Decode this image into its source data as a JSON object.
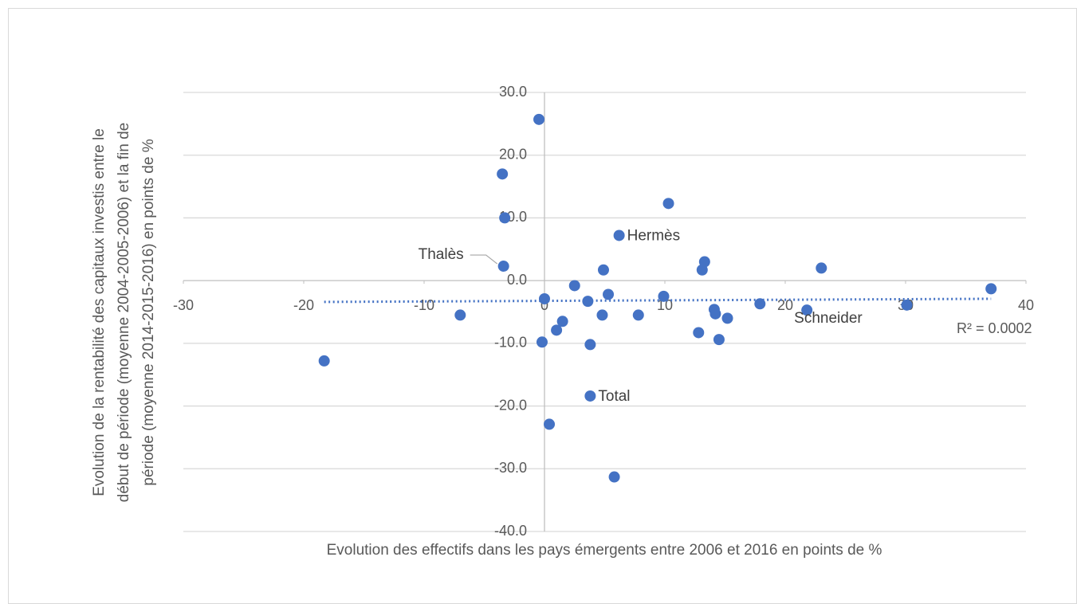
{
  "chart_data": {
    "type": "scatter",
    "xlabel": "Evolution des effectifs dans les pays émergents entre 2006 et 2016 en points de %",
    "ylabel": [
      "Evolution de la rentabilité des capitaux investis entre le",
      "début de période (moyenne 2004-2005-2006) et la fin de",
      "période (moyenne 2014-2015-2016) en points de %"
    ],
    "color": "#4472c4",
    "x": [
      -0.46,
      -3.5,
      -3.3,
      -3.4,
      -7.0,
      -18.3,
      0,
      -0.2,
      0.4,
      1.0,
      1.5,
      2.5,
      3.6,
      3.8,
      3.8,
      4.8,
      4.9,
      5.3,
      5.8,
      6.2,
      7.8,
      9.9,
      10.3,
      12.8,
      13.1,
      13.3,
      14.1,
      14.2,
      14.5,
      15.2,
      17.9,
      21.8,
      23.0,
      30.1,
      37.1
    ],
    "y": [
      25.7,
      17.0,
      10.0,
      2.3,
      -5.5,
      -12.8,
      -2.9,
      -9.8,
      -22.9,
      -7.9,
      -6.5,
      -0.8,
      -3.3,
      -10.2,
      -18.4,
      -5.5,
      1.7,
      -2.2,
      -31.3,
      7.2,
      -5.5,
      -2.5,
      12.3,
      -8.3,
      1.7,
      3.0,
      -4.6,
      -5.3,
      -9.4,
      -6.0,
      -3.7,
      -4.7,
      2.0,
      -3.9,
      -1.3
    ],
    "point_labels": [
      null,
      null,
      null,
      "Thalès",
      null,
      null,
      null,
      null,
      null,
      null,
      null,
      null,
      null,
      null,
      "Total",
      null,
      null,
      null,
      null,
      "Hermès",
      null,
      null,
      null,
      null,
      null,
      null,
      null,
      null,
      null,
      null,
      null,
      "Schneider",
      null,
      null,
      null
    ],
    "trendline": {
      "x": [
        -18.3,
        37.1
      ],
      "y": [
        -3.4,
        -2.9
      ],
      "label": "R² = 0.0002"
    },
    "xlim": [
      -30,
      40
    ],
    "xticks": [
      -30,
      -20,
      -10,
      0,
      10,
      20,
      30,
      40
    ],
    "ylim": [
      -40,
      30
    ],
    "yticks": [
      {
        "value": -40,
        "label": "-40.0"
      },
      {
        "value": -30,
        "label": "-30.0"
      },
      {
        "value": -20,
        "label": "-20.0"
      },
      {
        "value": -10,
        "label": "-10.0"
      },
      {
        "value": 0,
        "label": "0.0"
      },
      {
        "value": 10,
        "label": "10.0"
      },
      {
        "value": 20,
        "label": "20.0"
      },
      {
        "value": 30,
        "label": "30.0"
      }
    ],
    "grid": true
  }
}
